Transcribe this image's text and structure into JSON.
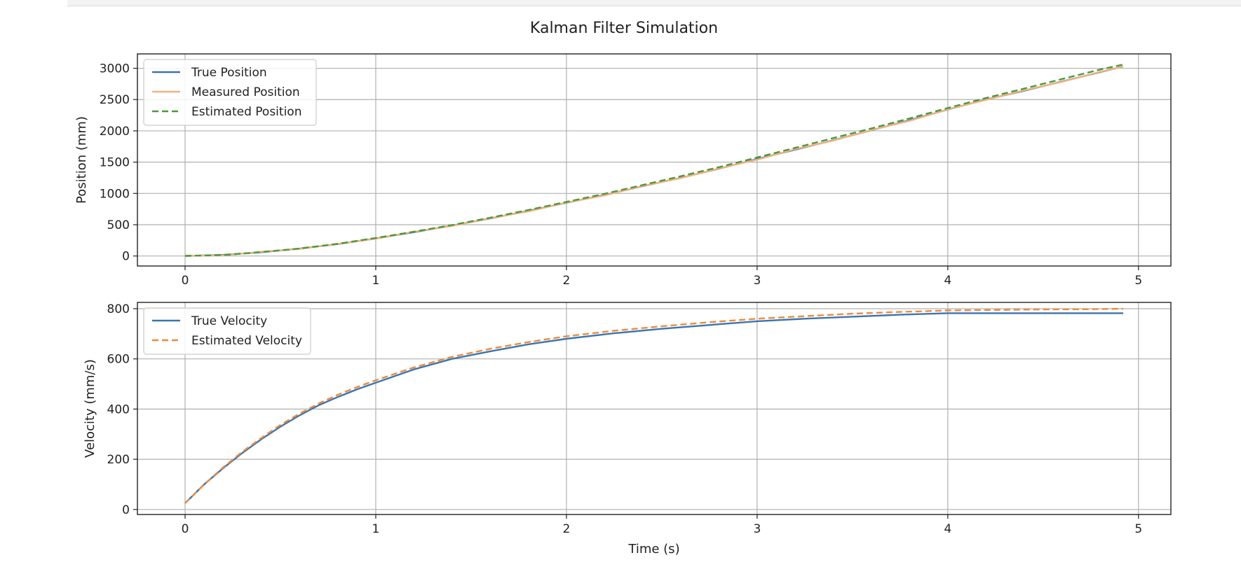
{
  "figure": {
    "title": "Kalman Filter Simulation"
  },
  "chart_data": [
    {
      "type": "line",
      "title": "",
      "xlabel": "",
      "ylabel": "Position (mm)",
      "xlim": [
        -0.25,
        5.17
      ],
      "ylim": [
        -160,
        3230
      ],
      "xticks": [
        0,
        1,
        2,
        3,
        4,
        5
      ],
      "yticks": [
        0,
        500,
        1000,
        1500,
        2000,
        2500,
        3000
      ],
      "grid": true,
      "legend": "top-left",
      "x": [
        0,
        0.2,
        0.4,
        0.6,
        0.8,
        1.0,
        1.2,
        1.4,
        1.6,
        1.8,
        2.0,
        2.2,
        2.4,
        2.6,
        2.8,
        3.0,
        3.2,
        3.4,
        3.6,
        3.8,
        4.0,
        4.2,
        4.4,
        4.6,
        4.8,
        4.92
      ],
      "series": [
        {
          "name": "True Position",
          "color": "#3a75b0",
          "dash": "solid",
          "values": [
            0,
            18,
            60,
            117,
            190,
            280,
            380,
            485,
            600,
            720,
            850,
            975,
            1115,
            1250,
            1395,
            1550,
            1700,
            1850,
            2010,
            2170,
            2340,
            2500,
            2640,
            2790,
            2940,
            3030
          ]
        },
        {
          "name": "Measured Position",
          "color": "#f2b27e",
          "dash": "solid",
          "values": [
            5,
            10,
            68,
            112,
            195,
            275,
            388,
            480,
            605,
            712,
            855,
            968,
            1120,
            1245,
            1400,
            1540,
            1708,
            1845,
            2015,
            2160,
            2345,
            2495,
            2648,
            2785,
            2945,
            3028
          ]
        },
        {
          "name": "Estimated Position",
          "color": "#4a9a3c",
          "dash": "dashed",
          "values": [
            2,
            15,
            62,
            120,
            195,
            287,
            388,
            495,
            612,
            735,
            865,
            995,
            1135,
            1275,
            1420,
            1575,
            1728,
            1885,
            2040,
            2200,
            2365,
            2525,
            2675,
            2830,
            2980,
            3060
          ]
        }
      ]
    },
    {
      "type": "line",
      "title": "",
      "xlabel": "Time (s)",
      "ylabel": "Velocity (mm/s)",
      "xlim": [
        -0.25,
        5.17
      ],
      "ylim": [
        -20,
        825
      ],
      "xticks": [
        0,
        1,
        2,
        3,
        4,
        5
      ],
      "yticks": [
        0,
        200,
        400,
        600,
        800
      ],
      "grid": true,
      "legend": "top-left",
      "x": [
        0,
        0.1,
        0.2,
        0.3,
        0.4,
        0.5,
        0.6,
        0.7,
        0.8,
        0.9,
        1.0,
        1.2,
        1.4,
        1.6,
        1.8,
        2.0,
        2.25,
        2.5,
        2.75,
        3.0,
        3.25,
        3.5,
        3.75,
        4.0,
        4.25,
        4.5,
        4.75,
        4.92
      ],
      "series": [
        {
          "name": "True Velocity",
          "color": "#3a75b0",
          "dash": "solid",
          "values": [
            25,
            100,
            165,
            225,
            280,
            330,
            375,
            415,
            448,
            478,
            505,
            558,
            600,
            630,
            658,
            680,
            702,
            720,
            735,
            750,
            760,
            768,
            776,
            782,
            782,
            782,
            782,
            782
          ]
        },
        {
          "name": "Estimated Velocity",
          "color": "#ee8a3a",
          "dash": "dashed",
          "values": [
            25,
            100,
            168,
            230,
            285,
            337,
            382,
            422,
            457,
            487,
            515,
            566,
            608,
            640,
            667,
            690,
            712,
            730,
            746,
            760,
            770,
            780,
            787,
            793,
            795,
            797,
            798,
            800
          ]
        }
      ]
    }
  ]
}
